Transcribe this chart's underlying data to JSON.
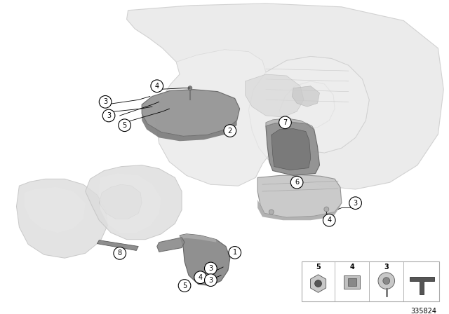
{
  "bg_color": "#ffffff",
  "part_number": "335824",
  "body_color": "#e8e8e8",
  "body_edge": "#c0c0c0",
  "panel2_color": "#a0a0a0",
  "panel2_edge": "#707070",
  "box7_color": "#909090",
  "box7_top_color": "#b0b0b0",
  "tray6_color": "#c0c0c0",
  "tank_color": "#e0e0e0",
  "tank_edge": "#c0c0c0",
  "part1_color": "#989898",
  "part1_edge": "#606060",
  "bar8_color": "#888888",
  "legend_box_color": "#ffffff",
  "legend_edge": "#999999"
}
